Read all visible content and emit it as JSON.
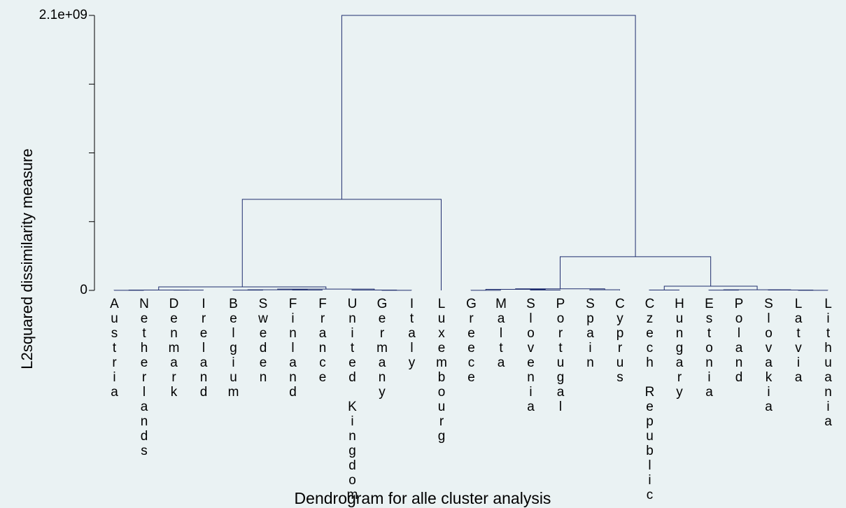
{
  "chart_data": {
    "type": "dendrogram",
    "title": "Dendrogram for alle cluster analysis",
    "y_label": "L2squared dissimilarity measure",
    "color": "#1f2d6e",
    "ylim": [
      0,
      2100000000
    ],
    "yticks": [
      0,
      {
        "value": 2100000000,
        "label": "2.1e+09"
      }
    ],
    "minor_yticks": [
      525000000,
      1050000000,
      1575000000
    ],
    "leaves": [
      "Austria",
      "Netherlands",
      "Denmark",
      "Ireland",
      "Belgium",
      "Sweden",
      "Finland",
      "France",
      "United Kingdom",
      "Germany",
      "Italy",
      "Luxembourg",
      "Greece",
      "Malta",
      "Slovenia",
      "Portugal",
      "Spain",
      "Cyprus",
      "Czech Republic",
      "Hungary",
      "Estonia",
      "Poland",
      "Slovakia",
      "Latvia",
      "Lithuania"
    ],
    "merges": [
      {
        "children": [
          0,
          1
        ],
        "height": 1000000
      },
      {
        "children": [
          2,
          3
        ],
        "height": 2000000
      },
      {
        "children": [
          25,
          26
        ],
        "height": 3000000
      },
      {
        "children": [
          4,
          5
        ],
        "height": 2000000
      },
      {
        "children": [
          6,
          7
        ],
        "height": 3000000
      },
      {
        "children": [
          28,
          29
        ],
        "height": 5000000
      },
      {
        "children": [
          9,
          10
        ],
        "height": 1000000
      },
      {
        "children": [
          8,
          31
        ],
        "height": 3000000
      },
      {
        "children": [
          30,
          32
        ],
        "height": 10000000
      },
      {
        "children": [
          27,
          33
        ],
        "height": 27000000
      },
      {
        "children": [
          34,
          11
        ],
        "height": 695000000
      },
      {
        "children": [
          12,
          13
        ],
        "height": 1000000
      },
      {
        "children": [
          14,
          15
        ],
        "height": 3000000
      },
      {
        "children": [
          36,
          37
        ],
        "height": 8000000
      },
      {
        "children": [
          16,
          17
        ],
        "height": 5000000
      },
      {
        "children": [
          38,
          39
        ],
        "height": 12000000
      },
      {
        "children": [
          18,
          19
        ],
        "height": 3000000
      },
      {
        "children": [
          20,
          21
        ],
        "height": 2000000
      },
      {
        "children": [
          23,
          24
        ],
        "height": 1000000
      },
      {
        "children": [
          22,
          43
        ],
        "height": 3000000
      },
      {
        "children": [
          42,
          44
        ],
        "height": 5000000
      },
      {
        "children": [
          41,
          45
        ],
        "height": 32000000
      },
      {
        "children": [
          40,
          46
        ],
        "height": 257000000
      },
      {
        "children": [
          35,
          47
        ],
        "height": 2100000000
      }
    ]
  }
}
